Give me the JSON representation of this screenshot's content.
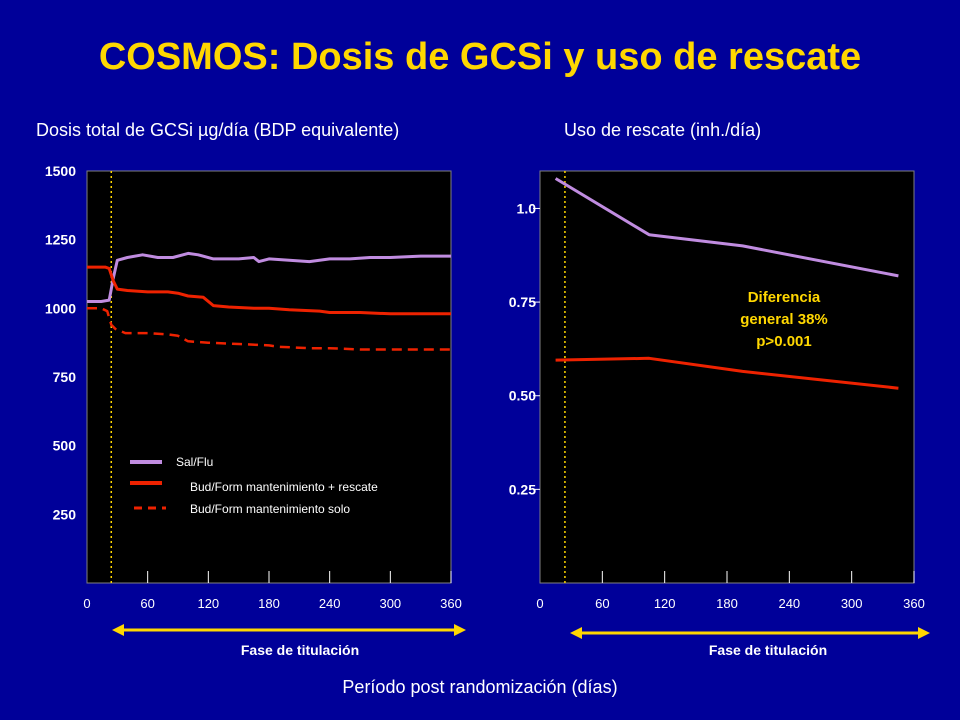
{
  "slide": {
    "title": "COSMOS: Dosis de GCSi y uso de rescate",
    "xlabel": "Período post randomización (días)"
  },
  "colors": {
    "background": "#000099",
    "title": "#FFD700",
    "sal_flu": "#C08CE0",
    "bud_form": "#EE2200",
    "titration_arrow": "#FFD700"
  },
  "chart_data": [
    {
      "type": "line",
      "title": "Dosis total de GCSi µg/día (BDP equivalente)",
      "xlabel": "Fase de titulación",
      "x_ticks": [
        0,
        60,
        120,
        180,
        240,
        300,
        360
      ],
      "y_ticks": [
        250,
        500,
        750,
        1000,
        1250,
        1500
      ],
      "xlim": [
        0,
        360
      ],
      "ylim": [
        0,
        1500
      ],
      "titration_end_x": 24,
      "legend": {
        "position": "bottom-left",
        "entries": [
          "Sal/Flu",
          "Bud/Form mantenimiento + rescate",
          "Bud/Form mantenimiento solo"
        ]
      },
      "series": [
        {
          "name": "Sal/Flu",
          "style": "solid-thin",
          "x": [
            0,
            14,
            22,
            26,
            30,
            40,
            55,
            70,
            85,
            100,
            110,
            125,
            150,
            165,
            170,
            180,
            200,
            220,
            240,
            260,
            280,
            300,
            330,
            360
          ],
          "y": [
            1025,
            1025,
            1030,
            1110,
            1175,
            1185,
            1195,
            1185,
            1185,
            1200,
            1195,
            1180,
            1180,
            1185,
            1170,
            1180,
            1175,
            1170,
            1180,
            1180,
            1185,
            1185,
            1190,
            1190
          ]
        },
        {
          "name": "Bud/Form mantenimiento + rescate",
          "style": "solid-thick",
          "x": [
            0,
            18,
            22,
            26,
            30,
            40,
            60,
            80,
            90,
            100,
            115,
            125,
            140,
            165,
            180,
            200,
            230,
            240,
            270,
            300,
            330,
            360
          ],
          "y": [
            1150,
            1150,
            1145,
            1100,
            1070,
            1065,
            1060,
            1060,
            1055,
            1045,
            1040,
            1010,
            1005,
            1000,
            1000,
            995,
            990,
            985,
            985,
            980,
            980,
            980
          ]
        },
        {
          "name": "Bud/Form mantenimiento solo",
          "style": "dashed",
          "x": [
            0,
            14,
            20,
            24,
            28,
            38,
            60,
            80,
            90,
            100,
            120,
            150,
            180,
            190,
            220,
            240,
            270,
            300,
            330,
            360
          ],
          "y": [
            1000,
            1000,
            990,
            940,
            925,
            910,
            910,
            905,
            900,
            880,
            875,
            870,
            865,
            860,
            855,
            855,
            850,
            850,
            850,
            850
          ]
        }
      ]
    },
    {
      "type": "line",
      "title": "Uso de rescate (inh./día)",
      "xlabel": "Fase de titulación",
      "x_ticks": [
        0,
        60,
        120,
        180,
        240,
        300,
        360
      ],
      "y_ticks": [
        0.25,
        0.5,
        0.75,
        1.0
      ],
      "y_tick_labels": [
        "0.25",
        "0.50",
        "0.75",
        "1.0"
      ],
      "xlim": [
        0,
        360
      ],
      "ylim": [
        0,
        1.1
      ],
      "titration_end_x": 24,
      "annotation": [
        "Diferencia",
        "general 38%",
        "p>0.001"
      ],
      "series": [
        {
          "name": "Sal/Flu",
          "style": "solid",
          "x": [
            15,
            105,
            195,
            345
          ],
          "y": [
            1.08,
            0.93,
            0.9,
            0.82
          ]
        },
        {
          "name": "Bud/Form mantenimiento + rescate",
          "style": "solid",
          "x": [
            15,
            105,
            195,
            345
          ],
          "y": [
            0.595,
            0.6,
            0.565,
            0.52
          ]
        }
      ]
    }
  ]
}
